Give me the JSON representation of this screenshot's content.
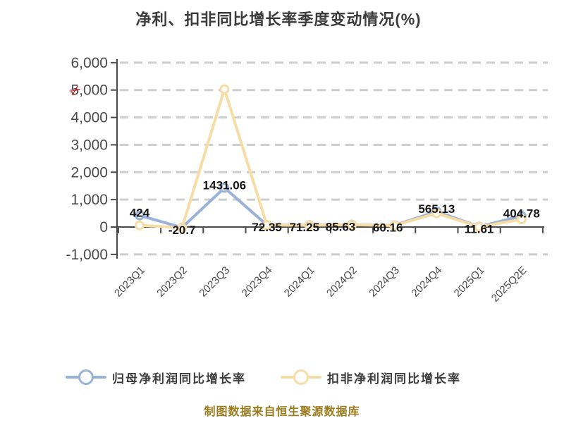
{
  "title": "净利、扣非同比增长率季度变动情况(%)",
  "watermark": {
    "glyph": "✂",
    "color": "#cf1f1f"
  },
  "footer": {
    "source_note": "制图数据来自恒生聚源数据库",
    "color": "#9a7b1d"
  },
  "chart_data": {
    "type": "line",
    "title": "净利、扣非同比增长率季度变动情况(%)",
    "categories": [
      "2023Q1",
      "2023Q2",
      "2023Q3",
      "2023Q4",
      "2024Q1",
      "2024Q2",
      "2024Q3",
      "2024Q4",
      "2025Q1",
      "2025Q2E"
    ],
    "series": [
      {
        "name": "归母净利润同比增长率",
        "color": "#99b2d9",
        "values": [
          424,
          -20.7,
          1431.06,
          72.35,
          71.25,
          85.63,
          60.16,
          565.13,
          11.61,
          404.78
        ]
      },
      {
        "name": "扣非净利润同比增长率",
        "color": "#f8dca6",
        "values": [
          60,
          -25,
          5030,
          70,
          65,
          80,
          55,
          500,
          5,
          280
        ]
      }
    ],
    "point_labels": [
      "424",
      "-20.7",
      "1431.06",
      "72.35",
      "71.25",
      "85.63",
      "60.16",
      "565.13",
      "11.61",
      "404.78"
    ],
    "ylim": [
      -1000,
      6000
    ],
    "ytick_step": 1000,
    "ytick_labels": [
      "6,000",
      "5,000",
      "4,000",
      "3,000",
      "2,000",
      "1,000",
      "0",
      "-1,000"
    ],
    "xlabel": "",
    "ylabel": "",
    "grid": "horizontal-dashed",
    "grid_color": "#cdcdcd",
    "axis_color": "#4a4a4a",
    "tick_label_color": "#4a4a4a",
    "value_label_color": "#161616",
    "legend_position": "bottom",
    "marker_style": "circle-white-fill"
  }
}
